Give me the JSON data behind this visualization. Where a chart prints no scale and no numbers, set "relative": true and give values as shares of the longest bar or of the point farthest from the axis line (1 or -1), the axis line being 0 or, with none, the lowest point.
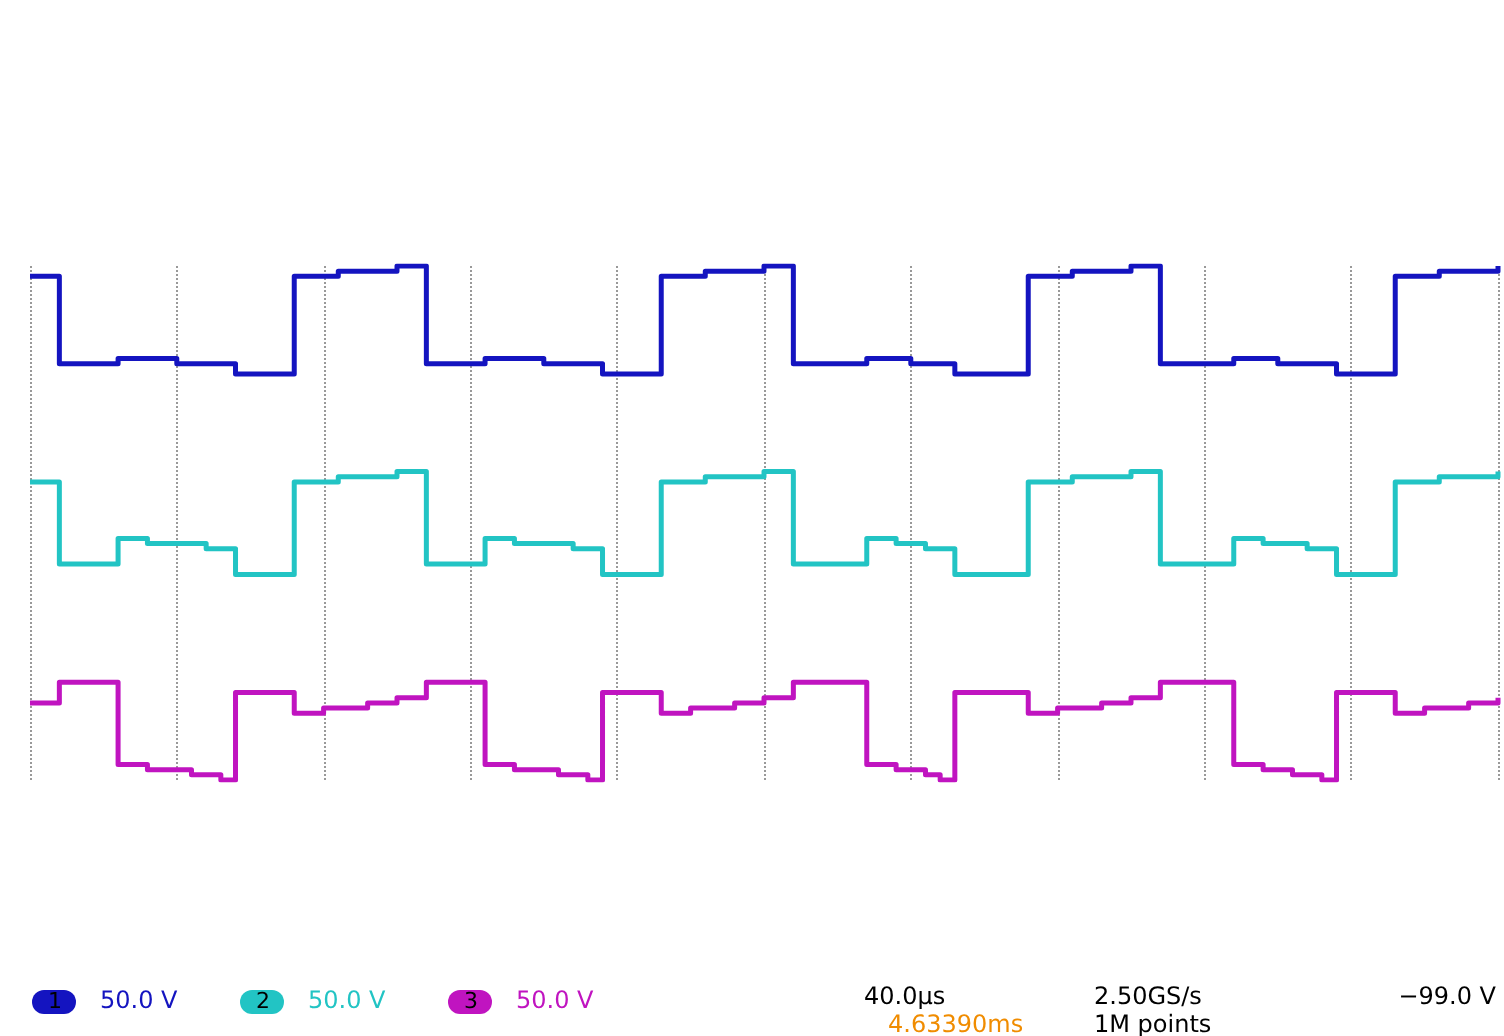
{
  "chart_data": {
    "type": "step",
    "relative": true,
    "grid": "x",
    "line_style": "solid",
    "categories": [
      null,
      null,
      null,
      null,
      null,
      null,
      null,
      null,
      null,
      null,
      null,
      null,
      null,
      null,
      null,
      null,
      null,
      null,
      null,
      null,
      null,
      null,
      null,
      null,
      null,
      null,
      null,
      null,
      null,
      null,
      null,
      null,
      null,
      null,
      null,
      null,
      null,
      null,
      null,
      null,
      null,
      null,
      null,
      null,
      null,
      null,
      null,
      null,
      null,
      null,
      null,
      null,
      null,
      null,
      null,
      null,
      null,
      null,
      null,
      null,
      null,
      null,
      null,
      null,
      null,
      null,
      null,
      null,
      null,
      null,
      null,
      null,
      null,
      null,
      null,
      null,
      null,
      null,
      null,
      null,
      null,
      null,
      null,
      null,
      null,
      null,
      null,
      null,
      null,
      null,
      null,
      null,
      null,
      null,
      null,
      null,
      null,
      null,
      null,
      null,
      null
    ],
    "series": [
      {
        "name": "1",
        "color": "#1414c0",
        "values": [
          0.98,
          0.98,
          0.81,
          0.81,
          0.81,
          0.81,
          0.82,
          0.82,
          0.82,
          0.82,
          0.81,
          0.81,
          0.81,
          0.81,
          0.79,
          0.79,
          0.79,
          0.79,
          0.98,
          0.98,
          0.98,
          0.99,
          0.99,
          0.99,
          0.99,
          1,
          1,
          0.81,
          0.81,
          0.81,
          0.81,
          0.82,
          0.82,
          0.82,
          0.82,
          0.81,
          0.81,
          0.81,
          0.81,
          0.79,
          0.79,
          0.79,
          0.79,
          0.98,
          0.98,
          0.98,
          0.99,
          0.99,
          0.99,
          0.99,
          1,
          1,
          0.81,
          0.81,
          0.81,
          0.81,
          0.81,
          0.82,
          0.82,
          0.82,
          0.81,
          0.81,
          0.81,
          0.79,
          0.79,
          0.79,
          0.79,
          0.79,
          0.98,
          0.98,
          0.98,
          0.99,
          0.99,
          0.99,
          0.99,
          1,
          1,
          0.81,
          0.81,
          0.81,
          0.81,
          0.81,
          0.82,
          0.82,
          0.82,
          0.81,
          0.81,
          0.81,
          0.81,
          0.79,
          0.79,
          0.79,
          0.79,
          0.98,
          0.98,
          0.98,
          0.99,
          0.99,
          0.99,
          0.99,
          1
        ]
      },
      {
        "name": "2",
        "color": "#22c4c4",
        "values": [
          0.58,
          0.58,
          0.42,
          0.42,
          0.42,
          0.42,
          0.47,
          0.47,
          0.46,
          0.46,
          0.46,
          0.46,
          0.45,
          0.45,
          0.4,
          0.4,
          0.4,
          0.4,
          0.58,
          0.58,
          0.58,
          0.59,
          0.59,
          0.59,
          0.59,
          0.6,
          0.6,
          0.42,
          0.42,
          0.42,
          0.42,
          0.47,
          0.47,
          0.46,
          0.46,
          0.46,
          0.46,
          0.45,
          0.45,
          0.4,
          0.4,
          0.4,
          0.4,
          0.58,
          0.58,
          0.58,
          0.59,
          0.59,
          0.59,
          0.59,
          0.6,
          0.6,
          0.42,
          0.42,
          0.42,
          0.42,
          0.42,
          0.47,
          0.47,
          0.46,
          0.46,
          0.45,
          0.45,
          0.4,
          0.4,
          0.4,
          0.4,
          0.4,
          0.58,
          0.58,
          0.58,
          0.59,
          0.59,
          0.59,
          0.59,
          0.6,
          0.6,
          0.42,
          0.42,
          0.42,
          0.42,
          0.42,
          0.47,
          0.47,
          0.46,
          0.46,
          0.46,
          0.45,
          0.45,
          0.4,
          0.4,
          0.4,
          0.4,
          0.58,
          0.58,
          0.58,
          0.59,
          0.59,
          0.59,
          0.59,
          0.6
        ]
      },
      {
        "name": "3",
        "color": "#c014c0",
        "values": [
          0.15,
          0.15,
          0.19,
          0.19,
          0.19,
          0.19,
          0.03,
          0.03,
          0.02,
          0.02,
          0.02,
          0.01,
          0.01,
          0,
          0.17,
          0.17,
          0.17,
          0.17,
          0.13,
          0.13,
          0.14,
          0.14,
          0.14,
          0.15,
          0.15,
          0.16,
          0.16,
          0.19,
          0.19,
          0.19,
          0.19,
          0.03,
          0.03,
          0.02,
          0.02,
          0.02,
          0.01,
          0.01,
          0,
          0.17,
          0.17,
          0.17,
          0.17,
          0.13,
          0.13,
          0.14,
          0.14,
          0.14,
          0.15,
          0.15,
          0.16,
          0.16,
          0.19,
          0.19,
          0.19,
          0.19,
          0.19,
          0.03,
          0.03,
          0.02,
          0.02,
          0.01,
          0,
          0.17,
          0.17,
          0.17,
          0.17,
          0.17,
          0.13,
          0.13,
          0.14,
          0.14,
          0.14,
          0.15,
          0.15,
          0.16,
          0.16,
          0.19,
          0.19,
          0.19,
          0.19,
          0.19,
          0.03,
          0.03,
          0.02,
          0.02,
          0.01,
          0.01,
          0,
          0.17,
          0.17,
          0.17,
          0.17,
          0.13,
          0.13,
          0.14,
          0.14,
          0.14,
          0.15,
          0.15,
          0.16
        ]
      }
    ],
    "annotations": [
      "50.0 V",
      "50.0 V",
      "50.0 V",
      "40.0µs",
      "4.63390ms",
      "2.50GS/s",
      "1M points",
      "−99.0 V"
    ]
  }
}
